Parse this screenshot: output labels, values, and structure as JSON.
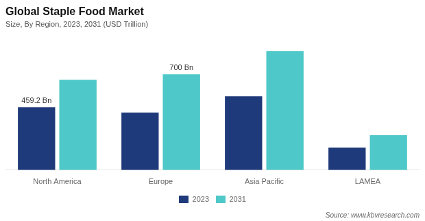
{
  "chart_data": {
    "type": "bar",
    "title": "Global Staple Food Market",
    "subtitle": "Size, By Region, 2023, 2031 (USD Trillion)",
    "categories": [
      "North America",
      "Europe",
      "Asia Pacific",
      "LAMEA"
    ],
    "series": [
      {
        "name": "2023",
        "color": "#1f3a7a",
        "values": [
          459.2,
          420,
          540,
          165
        ]
      },
      {
        "name": "2031",
        "color": "#4ec8c8",
        "values": [
          660,
          700,
          870,
          255
        ]
      }
    ],
    "ylim": [
      0,
      980
    ],
    "grid": false,
    "legend": "bottom",
    "tick_labels": "x",
    "annotations": [
      {
        "text": "459.2 Bn",
        "category": "North America",
        "series": "2023"
      },
      {
        "text": "700 Bn",
        "category": "Europe",
        "series": "2031"
      }
    ],
    "source": "Source: www.kbvresearch.com"
  }
}
